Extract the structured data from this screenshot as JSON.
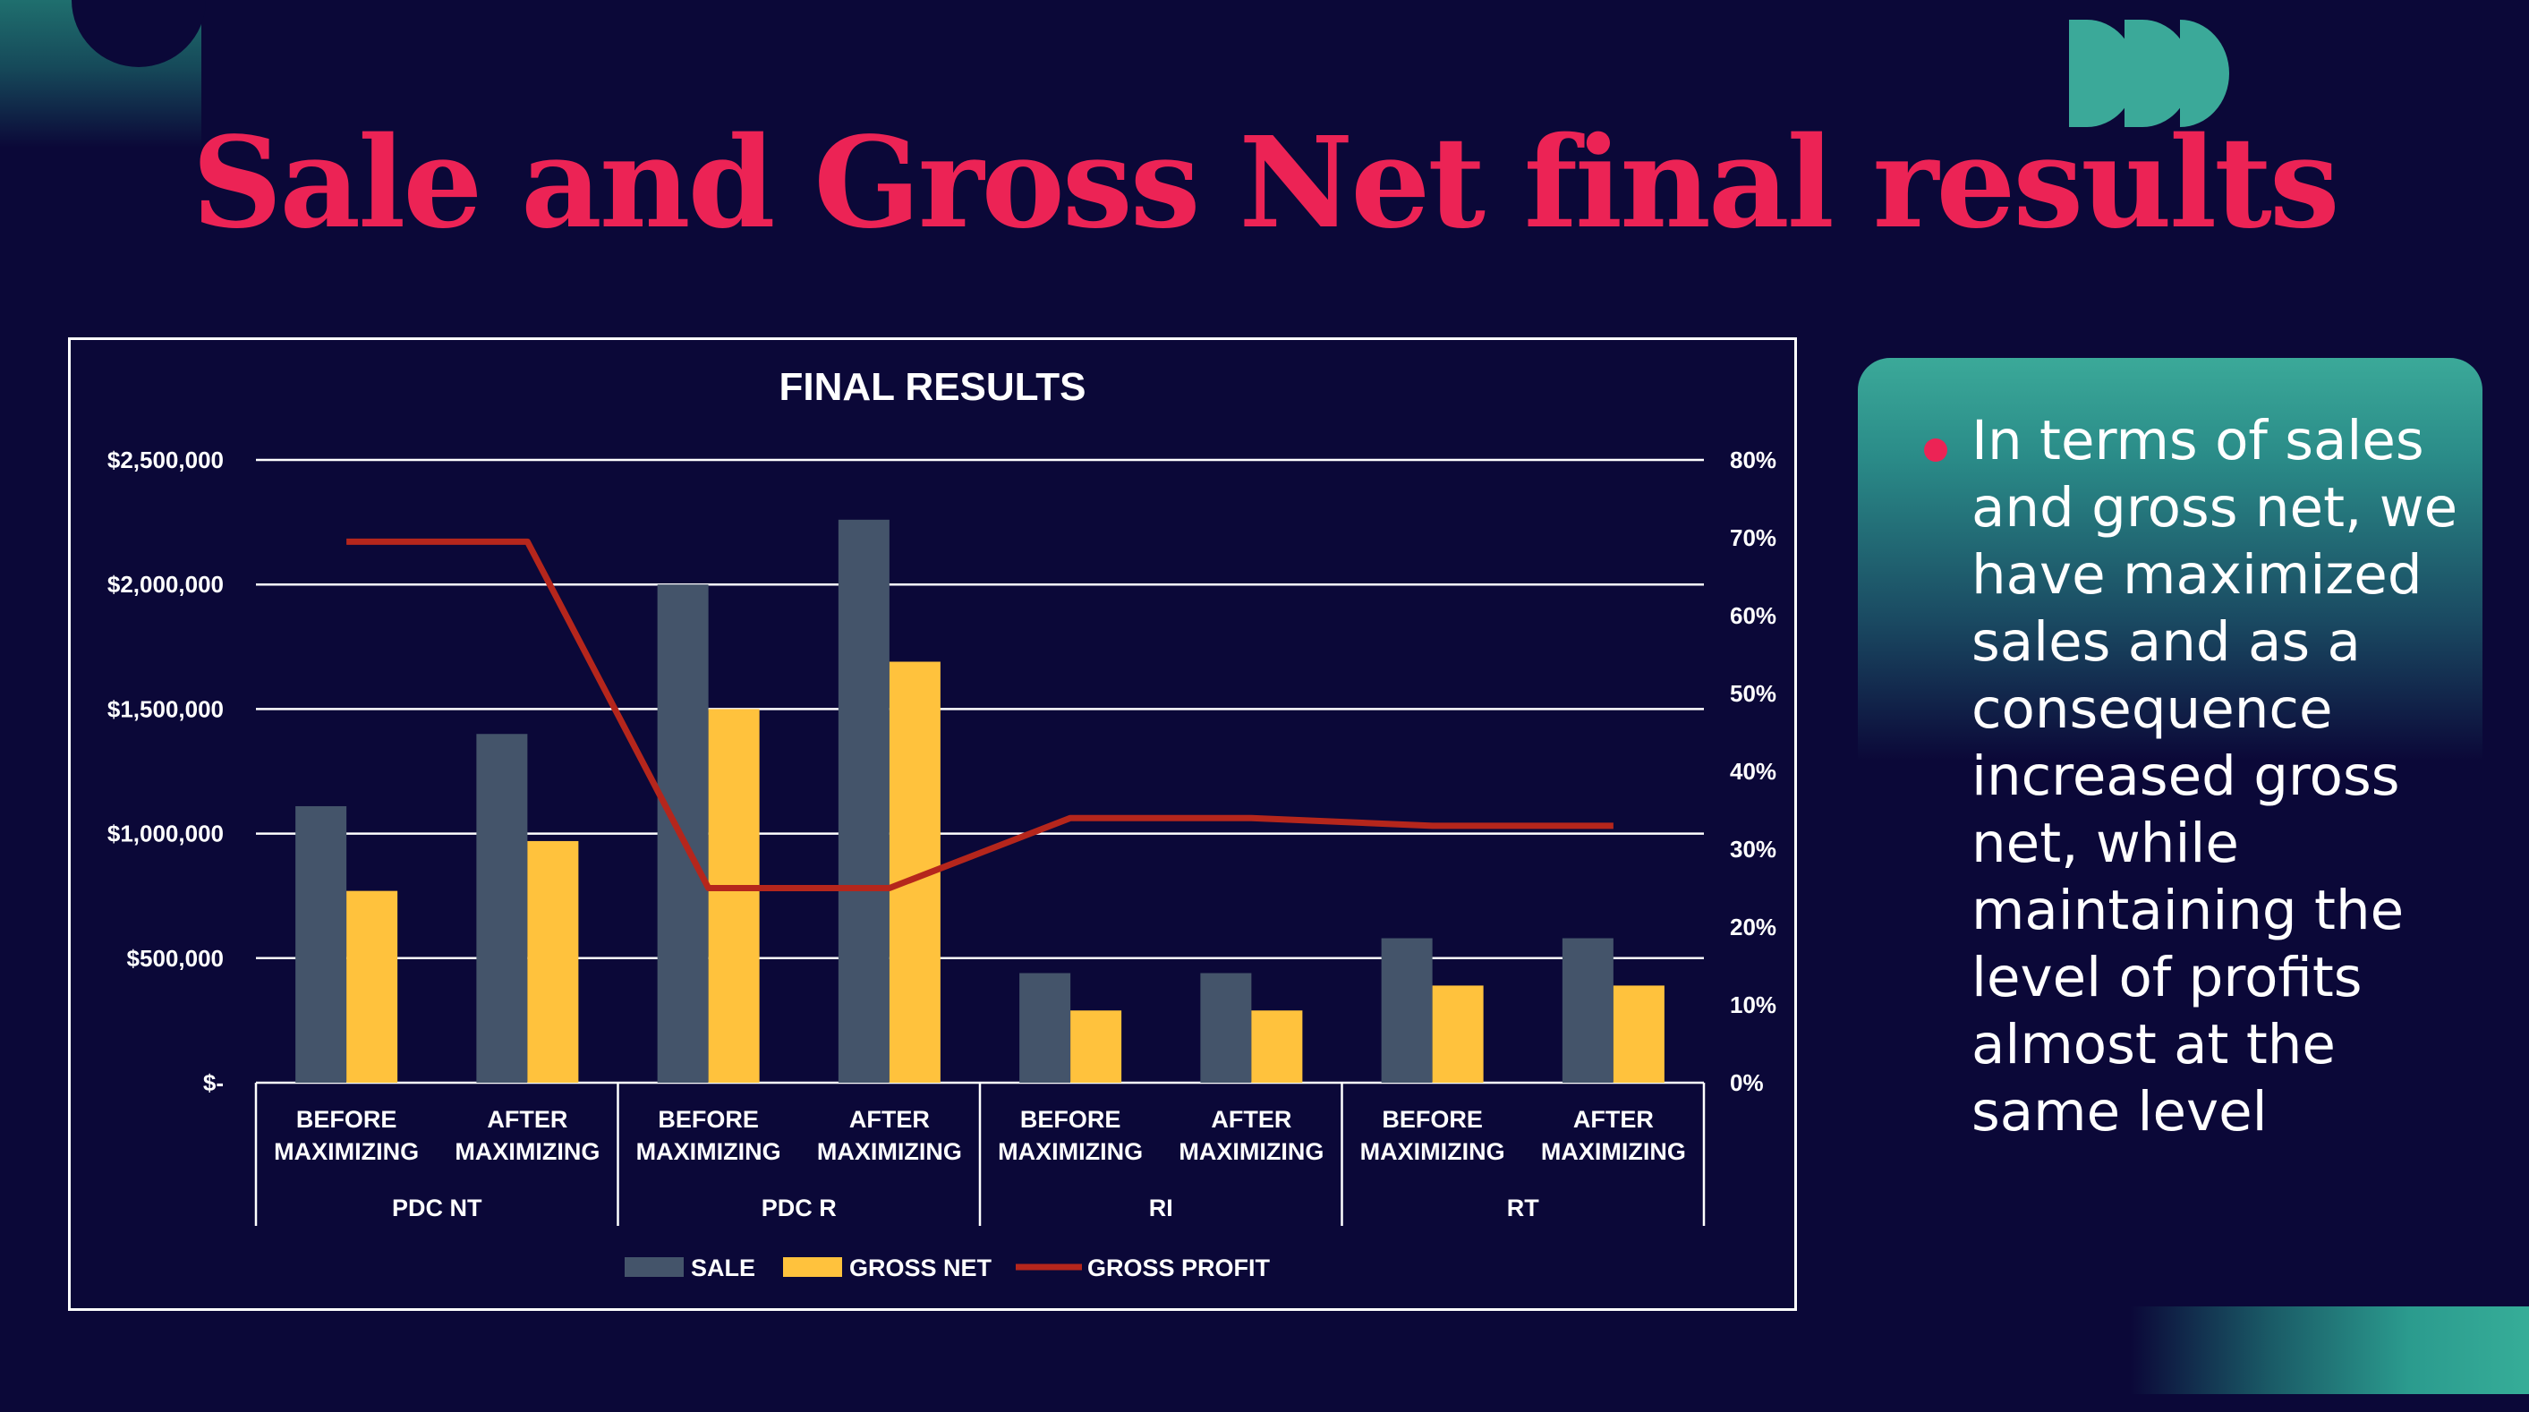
{
  "slide": {
    "title": "Sale and Gross Net final results",
    "note": "In terms of sales and gross net, we have maximized sales and as a consequence increased gross net, while maintaining the level of profits almost at the same level"
  },
  "colors": {
    "background": "#0b0838",
    "title": "#ec2355",
    "accent_teal": "#3ba999",
    "sale": "#44546a",
    "gross_net": "#ffc23d",
    "gross_profit": "#b5261c"
  },
  "chart_data": {
    "type": "bar",
    "title": "FINAL RESULTS",
    "categories": [
      {
        "label": "BEFORE MAXIMIZING",
        "group": "PDC NT"
      },
      {
        "label": "AFTER MAXIMIZING",
        "group": "PDC NT"
      },
      {
        "label": "BEFORE MAXIMIZING",
        "group": "PDC R"
      },
      {
        "label": "AFTER MAXIMIZING",
        "group": "PDC R"
      },
      {
        "label": "BEFORE MAXIMIZING",
        "group": "RI"
      },
      {
        "label": "AFTER MAXIMIZING",
        "group": "RI"
      },
      {
        "label": "BEFORE MAXIMIZING",
        "group": "RT"
      },
      {
        "label": "AFTER MAXIMIZING",
        "group": "RT"
      }
    ],
    "groups": [
      "PDC NT",
      "PDC R",
      "RI",
      "RT"
    ],
    "series": [
      {
        "name": "SALE",
        "type": "bar",
        "axis": "left",
        "values": [
          1110000,
          1400000,
          2000000,
          2260000,
          440000,
          440000,
          580000,
          580000
        ]
      },
      {
        "name": "GROSS NET",
        "type": "bar",
        "axis": "left",
        "values": [
          770000,
          970000,
          1500000,
          1690000,
          290000,
          290000,
          390000,
          390000
        ]
      },
      {
        "name": "GROSS PROFIT",
        "type": "line",
        "axis": "right",
        "values": [
          0.695,
          0.695,
          0.25,
          0.25,
          0.34,
          0.34,
          0.33,
          0.33
        ]
      }
    ],
    "y_left": {
      "min": 0,
      "max": 2500000,
      "ticks": [
        "$-",
        "$500,000",
        "$1,000,000",
        "$1,500,000",
        "$2,000,000",
        "$2,500,000"
      ]
    },
    "y_right": {
      "min": 0,
      "max": 0.8,
      "ticks": [
        "0%",
        "10%",
        "20%",
        "30%",
        "40%",
        "50%",
        "60%",
        "70%",
        "80%"
      ]
    },
    "grid": true,
    "legend_position": "bottom"
  }
}
